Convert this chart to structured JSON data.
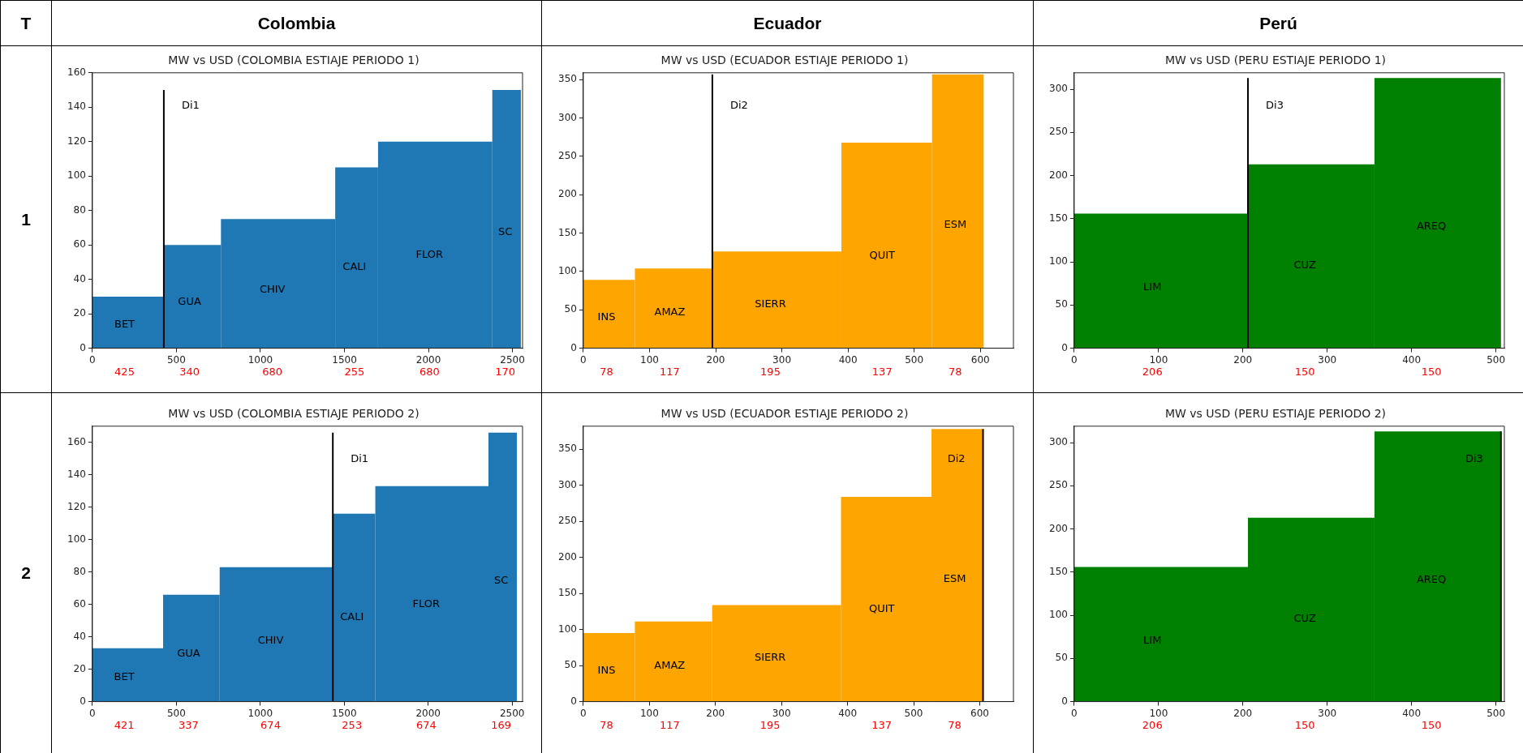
{
  "chart_data": [
    {
      "type": "other",
      "annotations": [
        "T",
        "Colombia",
        "Ecuador",
        "Perú",
        "1",
        "2"
      ]
    },
    {
      "type": "histogram",
      "title": "MW vs USD (COLOMBIA ESTIAJE PERIODO 1)",
      "bins": [
        0,
        425,
        765,
        1445,
        1700,
        2380,
        2550
      ],
      "values": [
        30,
        60,
        75,
        105,
        120,
        150
      ],
      "color": "#1f77b4",
      "xlim": [
        0,
        2560
      ],
      "xticks": [
        0,
        500,
        1000,
        1500,
        2000,
        2500
      ],
      "ylim": [
        0,
        160
      ],
      "yticks": [
        0,
        20,
        40,
        60,
        80,
        100,
        120,
        140,
        160
      ],
      "ref_lines": [
        {
          "axis": "x",
          "value": 425,
          "color": "#000000"
        }
      ],
      "annotations": [
        "BET",
        "GUA",
        "CHIV",
        "CALI",
        "FLOR",
        "SC",
        "Di1",
        "425",
        "340",
        "680",
        "255",
        "680",
        "170"
      ]
    },
    {
      "type": "histogram",
      "title": "MW vs USD (ECUADOR ESTIAJE PERIODO 1)",
      "bins": [
        0,
        78,
        195,
        390,
        527,
        605
      ],
      "values": [
        89,
        104,
        126,
        268,
        357
      ],
      "color": "#ffa500",
      "xlim": [
        0,
        650
      ],
      "xticks": [
        0,
        100,
        200,
        300,
        400,
        500,
        600
      ],
      "ylim": [
        0,
        359
      ],
      "yticks": [
        0,
        50,
        100,
        150,
        200,
        250,
        300,
        350
      ],
      "ref_lines": [
        {
          "axis": "x",
          "value": 195,
          "color": "#000000"
        }
      ],
      "annotations": [
        "INS",
        "AMAZ",
        "SIERR",
        "QUIT",
        "ESM",
        "Di2",
        "78",
        "117",
        "195",
        "137",
        "78"
      ]
    },
    {
      "type": "histogram",
      "title": "MW vs USD (PERU ESTIAJE PERIODO 1)",
      "bins": [
        0,
        206,
        356,
        506
      ],
      "values": [
        156,
        213,
        313
      ],
      "color": "#008000",
      "xlim": [
        0,
        510
      ],
      "xticks": [
        0,
        100,
        200,
        300,
        400,
        500
      ],
      "ylim": [
        0,
        319
      ],
      "yticks": [
        0,
        50,
        100,
        150,
        200,
        250,
        300
      ],
      "ref_lines": [
        {
          "axis": "x",
          "value": 206,
          "color": "#000000"
        }
      ],
      "annotations": [
        "LIM",
        "CUZ",
        "AREQ",
        "Di3",
        "206",
        "150",
        "150"
      ]
    },
    {
      "type": "histogram",
      "title": "MW vs USD (COLOMBIA ESTIAJE PERIODO 2)",
      "bins": [
        0,
        421,
        758,
        1432,
        1685,
        2359,
        2528
      ],
      "values": [
        33,
        66,
        83,
        116,
        133,
        166
      ],
      "color": "#1f77b4",
      "xlim": [
        0,
        2562
      ],
      "xticks": [
        0,
        500,
        1000,
        1500,
        2000,
        2500
      ],
      "ylim": [
        0,
        170
      ],
      "yticks": [
        0,
        20,
        40,
        60,
        80,
        100,
        120,
        140,
        160
      ],
      "ref_lines": [
        {
          "axis": "x",
          "value": 1432,
          "color": "#000000"
        }
      ],
      "annotations": [
        "BET",
        "GUA",
        "CHIV",
        "CALI",
        "FLOR",
        "SC",
        "Di1",
        "421",
        "337",
        "674",
        "253",
        "674",
        "169"
      ]
    },
    {
      "type": "histogram",
      "title": "MW vs USD (ECUADOR ESTIAJE PERIODO 2)",
      "bins": [
        0,
        78,
        195,
        390,
        527,
        605
      ],
      "values": [
        95,
        111,
        134,
        284,
        378
      ],
      "color": "#ffa500",
      "xlim": [
        0,
        651
      ],
      "xticks": [
        0,
        100,
        200,
        300,
        400,
        500,
        600
      ],
      "ylim": [
        0,
        382
      ],
      "yticks": [
        0,
        50,
        100,
        150,
        200,
        250,
        300,
        350
      ],
      "ref_lines": [
        {
          "axis": "x",
          "value": 605,
          "color": "#000000"
        }
      ],
      "annotations": [
        "INS",
        "AMAZ",
        "SIERR",
        "QUIT",
        "ESM",
        "Di2",
        "78",
        "117",
        "195",
        "137",
        "78"
      ]
    },
    {
      "type": "histogram",
      "title": "MW vs USD (PERU ESTIAJE PERIODO 2)",
      "bins": [
        0,
        206,
        356,
        506
      ],
      "values": [
        156,
        213,
        313
      ],
      "color": "#008000",
      "xlim": [
        0,
        510
      ],
      "xticks": [
        0,
        100,
        200,
        300,
        400,
        500
      ],
      "ylim": [
        0,
        319
      ],
      "yticks": [
        0,
        50,
        100,
        150,
        200,
        250,
        300
      ],
      "ref_lines": [
        {
          "axis": "x",
          "value": 506,
          "color": "#000000"
        }
      ],
      "annotations": [
        "LIM",
        "CUZ",
        "AREQ",
        "Di3",
        "206",
        "150",
        "150"
      ]
    }
  ]
}
